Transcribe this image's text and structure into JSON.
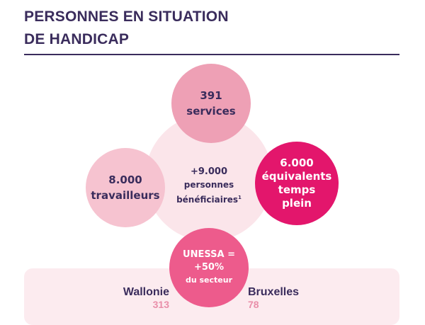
{
  "title": {
    "line1": "PERSONNES EN SITUATION",
    "line2": "DE HANDICAP"
  },
  "center": {
    "line1": "+9.000",
    "line2": "personnes",
    "line3": "bénéficiaires",
    "footnote": "1"
  },
  "services": {
    "value": "391",
    "label": "services"
  },
  "workers": {
    "value": "8.000",
    "label": "travailleurs"
  },
  "etp": {
    "value": "6.000",
    "line2": "équivalents",
    "line3": "temps",
    "line4": "plein"
  },
  "unessa": {
    "line1": "UNESSA =",
    "line2": "+50%",
    "line3": "du secteur"
  },
  "regions": {
    "wallonie": {
      "name": "Wallonie",
      "value": "313"
    },
    "bruxelles": {
      "name": "Bruxelles",
      "value": "78"
    }
  },
  "colors": {
    "title": "#3a2c5c",
    "services_circle": "#eea0b5",
    "workers_circle": "#f6c3d0",
    "etp_circle": "#e3166c",
    "unessa_circle": "#ed5b8c",
    "center_circle": "#fbe5ea",
    "region_value": "#e98ea9",
    "band": "#fcebef"
  }
}
